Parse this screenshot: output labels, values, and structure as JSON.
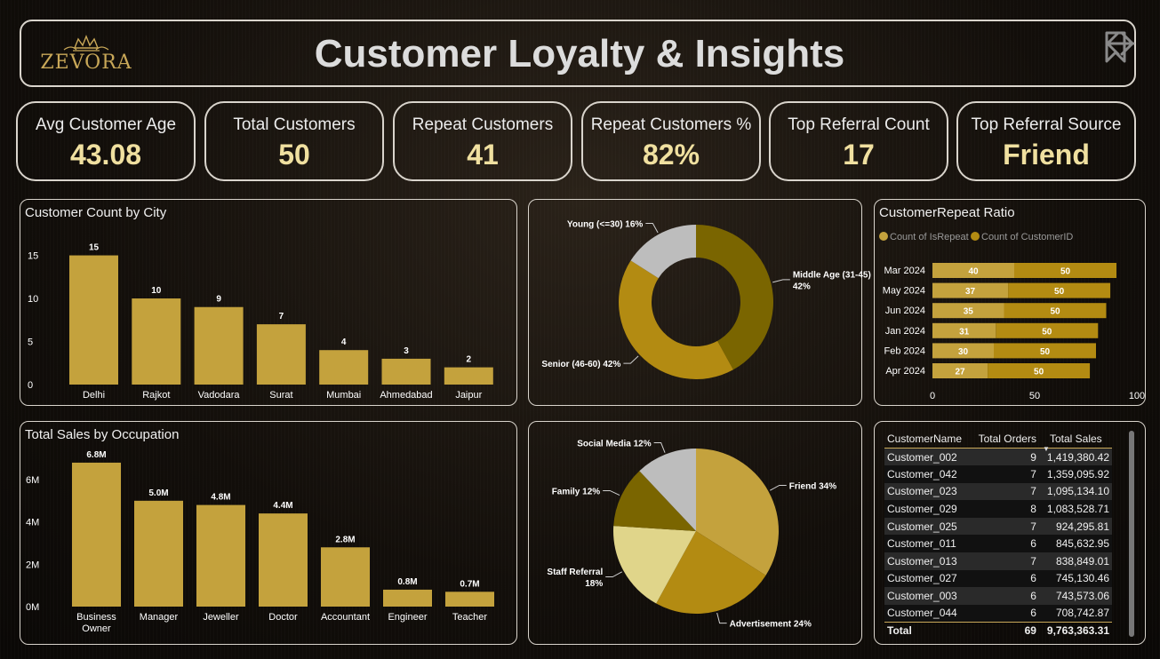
{
  "header": {
    "logo_text": "ZEVORA",
    "title": "Customer Loyalty & Insights"
  },
  "kpis": [
    {
      "label": "Avg Customer Age",
      "value": "43.08"
    },
    {
      "label": "Total Customers",
      "value": "50"
    },
    {
      "label": "Repeat Customers",
      "value": "41"
    },
    {
      "label": "Repeat Customers %",
      "value": "82%"
    },
    {
      "label": "Top Referral Count",
      "value": "17"
    },
    {
      "label": "Top Referral Source",
      "value": "Friend"
    }
  ],
  "colors": {
    "gold": "#c4a23d",
    "gold_light": "#e0d58a",
    "gold_dark": "#7a6500",
    "gold_mid": "#b38b12",
    "grey": "#bdbdbd",
    "accent_text": "#f0e0a0"
  },
  "chart_data": [
    {
      "id": "city",
      "type": "bar",
      "title": "Customer Count by City",
      "categories": [
        "Delhi",
        "Rajkot",
        "Vadodara",
        "Surat",
        "Mumbai",
        "Ahmedabad",
        "Jaipur"
      ],
      "values": [
        15,
        10,
        9,
        7,
        4,
        3,
        2
      ],
      "data_labels": [
        "15",
        "10",
        "9",
        "7",
        "4",
        "3",
        "2"
      ],
      "yticks": [
        "0",
        "5",
        "10",
        "15"
      ],
      "ytick_values": [
        0,
        5,
        10,
        15
      ],
      "ylim": [
        0,
        16.5
      ]
    },
    {
      "id": "age",
      "type": "pie",
      "donut": true,
      "labels": [
        "Middle Age (31-45) 42%",
        "Senior (46-60) 42%",
        "Young (<=30) 16%"
      ],
      "values": [
        42,
        42,
        16
      ],
      "colors": [
        "#7a6500",
        "#b38b12",
        "#bdbdbd"
      ]
    },
    {
      "id": "repeat",
      "type": "bar",
      "orientation": "horizontal",
      "stacked": true,
      "title": "CustomerRepeat Ratio",
      "legend": [
        "Count of IsRepeat",
        "Count of CustomerID"
      ],
      "legend_position": "top-left",
      "categories": [
        "Mar 2024",
        "May 2024",
        "Jun 2024",
        "Jan 2024",
        "Feb 2024",
        "Apr 2024"
      ],
      "series": [
        {
          "name": "Count of IsRepeat",
          "values": [
            40,
            37,
            35,
            31,
            30,
            27
          ]
        },
        {
          "name": "Count of CustomerID",
          "values": [
            50,
            50,
            50,
            50,
            50,
            50
          ]
        }
      ],
      "xticks": [
        "0",
        "50",
        "100"
      ],
      "xtick_values": [
        0,
        50,
        100
      ],
      "xlim": [
        0,
        100
      ]
    },
    {
      "id": "occupation",
      "type": "bar",
      "title": "Total Sales by Occupation",
      "categories": [
        "Business Owner",
        "Manager",
        "Jeweller",
        "Doctor",
        "Accountant",
        "Engineer",
        "Teacher"
      ],
      "values": [
        6.8,
        5.0,
        4.8,
        4.4,
        2.8,
        0.8,
        0.7
      ],
      "data_labels": [
        "6.8M",
        "5.0M",
        "4.8M",
        "4.4M",
        "2.8M",
        "0.8M",
        "0.7M"
      ],
      "yticks": [
        "0M",
        "2M",
        "4M",
        "6M"
      ],
      "ytick_values": [
        0,
        2,
        4,
        6
      ],
      "ylim": [
        0,
        7.3
      ]
    },
    {
      "id": "referral",
      "type": "pie",
      "labels": [
        "Friend 34%",
        "Advertisement 24%",
        "Staff Referral 18%",
        "Family 12%",
        "Social Media 12%"
      ],
      "values": [
        34,
        24,
        18,
        12,
        12
      ],
      "colors": [
        "#c4a23d",
        "#b38b12",
        "#e0d58a",
        "#7a6500",
        "#bdbdbd"
      ]
    },
    {
      "id": "sales_table",
      "type": "table",
      "columns": [
        "CustomerName",
        "Total Orders",
        "Total Sales"
      ],
      "rows": [
        [
          "Customer_002",
          "9",
          "1,419,380.42"
        ],
        [
          "Customer_042",
          "7",
          "1,359,095.92"
        ],
        [
          "Customer_023",
          "7",
          "1,095,134.10"
        ],
        [
          "Customer_029",
          "8",
          "1,083,528.71"
        ],
        [
          "Customer_025",
          "7",
          "924,295.81"
        ],
        [
          "Customer_011",
          "6",
          "845,632.95"
        ],
        [
          "Customer_013",
          "7",
          "838,849.01"
        ],
        [
          "Customer_027",
          "6",
          "745,130.46"
        ],
        [
          "Customer_003",
          "6",
          "743,573.06"
        ],
        [
          "Customer_044",
          "6",
          "708,742.87"
        ]
      ],
      "total": [
        "Total",
        "69",
        "9,763,363.31"
      ]
    }
  ]
}
